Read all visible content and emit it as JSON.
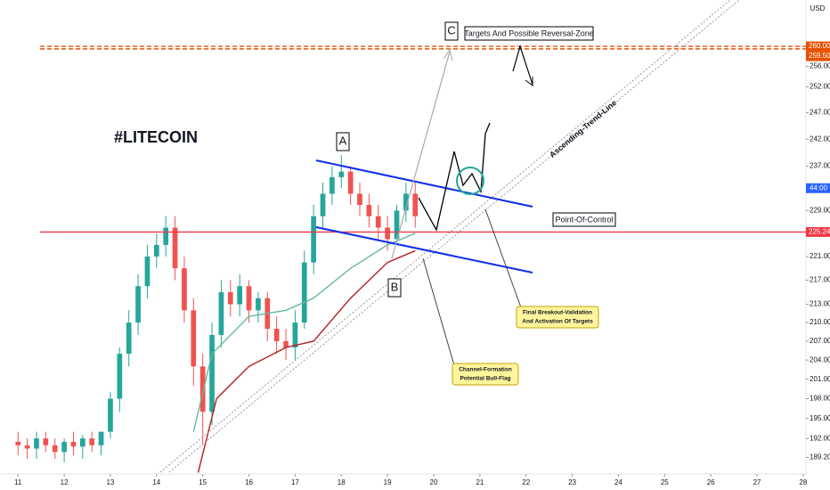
{
  "chart_data": {
    "type": "candlestick",
    "currency": "USD",
    "log_scale": true,
    "xlim": [
      10.61,
      28.06
    ],
    "ylim": [
      186.8,
      269.5
    ],
    "xticks": [
      11,
      12,
      13,
      14,
      15,
      16,
      17,
      18,
      19,
      20,
      21,
      22,
      23,
      24,
      25,
      26,
      27,
      28
    ],
    "yticks": [
      {
        "value": 256,
        "label": "256.00"
      },
      {
        "value": 252,
        "label": "252.00"
      },
      {
        "value": 247,
        "label": "247.00"
      },
      {
        "value": 242,
        "label": "242.00"
      },
      {
        "value": 237,
        "label": "237.00"
      },
      {
        "value": 229,
        "label": "229.00"
      },
      {
        "value": 221,
        "label": "221.00"
      },
      {
        "value": 217,
        "label": "217.00"
      },
      {
        "value": 213,
        "label": "213.00"
      },
      {
        "value": 210,
        "label": "210.00"
      },
      {
        "value": 207,
        "label": "207.00"
      },
      {
        "value": 204,
        "label": "204.00"
      },
      {
        "value": 201,
        "label": "201.00"
      },
      {
        "value": 198,
        "label": "198.00"
      },
      {
        "value": 195,
        "label": "195.00"
      },
      {
        "value": 192,
        "label": "192.00"
      },
      {
        "value": 189.2,
        "label": "189.20"
      }
    ],
    "up_color": "#26a69a",
    "down_color": "#ef5350",
    "x": [
      11.0,
      11.2,
      11.4,
      11.6,
      11.8,
      12.0,
      12.2,
      12.4,
      12.6,
      12.8,
      13.0,
      13.2,
      13.4,
      13.6,
      13.8,
      14.0,
      14.2,
      14.4,
      14.6,
      14.8,
      15.0,
      15.2,
      15.4,
      15.6,
      15.8,
      16.0,
      16.2,
      16.4,
      16.6,
      16.8,
      17.0,
      17.2,
      17.4,
      17.6,
      17.8,
      18.0,
      18.2,
      18.4,
      18.6,
      18.8,
      19.0,
      19.2,
      19.4,
      19.6
    ],
    "open": [
      191.5,
      191,
      190.5,
      192,
      191,
      190,
      191.5,
      190.8,
      192,
      191,
      193,
      198,
      205,
      210,
      216,
      221,
      223,
      226,
      219,
      212,
      203,
      196,
      208,
      215,
      213,
      216,
      212,
      214,
      209,
      207,
      206,
      210,
      220,
      228,
      232,
      235,
      236,
      232,
      230,
      228,
      226,
      224,
      229,
      232
    ],
    "high": [
      193,
      192,
      193,
      193,
      192,
      192,
      193,
      192.5,
      193,
      193,
      199,
      206,
      212,
      218,
      223,
      225,
      228,
      228,
      221,
      214,
      205,
      210,
      217,
      217,
      218,
      217,
      215,
      215,
      211,
      209,
      212,
      222,
      230,
      234,
      237,
      239,
      237,
      234,
      232,
      230,
      228,
      230,
      234,
      234
    ],
    "low": [
      189.5,
      189,
      189,
      190,
      189,
      188.5,
      189.5,
      189,
      190,
      189.5,
      192,
      196,
      203,
      208,
      214,
      219,
      221,
      217,
      210,
      200,
      191,
      194,
      206,
      211,
      211,
      210,
      210,
      207,
      205,
      204,
      204,
      209,
      218,
      226,
      230,
      233,
      230,
      228,
      226,
      224,
      222,
      223,
      227,
      226
    ],
    "close": [
      191,
      190.5,
      192,
      191,
      190,
      191.5,
      190.8,
      192,
      191,
      193,
      198,
      205,
      210,
      216,
      221,
      223,
      226,
      219,
      212,
      203,
      196,
      208,
      215,
      213,
      216,
      212,
      214,
      209,
      207,
      206,
      210,
      220,
      228,
      232,
      235,
      236,
      232,
      230,
      228,
      226,
      224,
      229,
      232,
      228
    ],
    "moving_averages": [
      {
        "color": "#b71c1c",
        "x": [
          14.9,
          15.3,
          16,
          16.8,
          17.4,
          18.2,
          19,
          19.6
        ],
        "values": [
          187,
          198,
          203,
          206,
          207,
          214,
          220,
          222
        ]
      },
      {
        "color": "#66bb9a",
        "x": [
          14.8,
          15.2,
          16,
          16.8,
          17.4,
          18.2,
          19,
          19.6
        ],
        "values": [
          193,
          205,
          211,
          212,
          214,
          219,
          223,
          225
        ]
      }
    ],
    "levels": [
      {
        "value": 260,
        "label": "260.00",
        "color": "#e65100",
        "dashed": true
      },
      {
        "value": 259.5,
        "label": "259.50",
        "color": "#e65100",
        "dashed": true
      },
      {
        "value": 225.24,
        "label": "225.24",
        "color": "#f23645",
        "dashed": false
      }
    ],
    "countdown": "44:00",
    "annotations": {
      "title": "#LITECOIN",
      "a": "A",
      "b": "B",
      "c": "C",
      "targets": "Targets And Possible Reversal-Zone",
      "poc": "Point-Of-Control",
      "trend": "Ascending-Trend-Line",
      "breakout": [
        "Final Breakout-Validation",
        "And Activation Of Targets"
      ],
      "channel": [
        "Channel-Formation",
        "Potential Bull-Flag"
      ]
    }
  }
}
